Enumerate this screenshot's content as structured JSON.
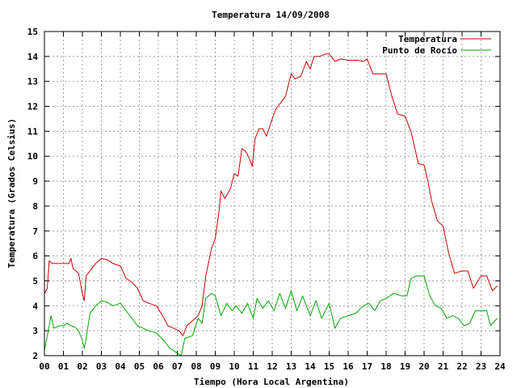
{
  "chart_data": {
    "type": "line",
    "title": "Temperatura 14/09/2008",
    "xlabel": "Tiempo (Hora Local Argentina)",
    "ylabel": "Temperatura (Grados Celsius)",
    "xlim": [
      0,
      24
    ],
    "ylim": [
      2,
      15
    ],
    "x_ticks": [
      "00",
      "01",
      "02",
      "03",
      "04",
      "05",
      "06",
      "07",
      "08",
      "09",
      "10",
      "11",
      "12",
      "13",
      "14",
      "15",
      "16",
      "17",
      "18",
      "19",
      "20",
      "21",
      "22",
      "23",
      "24"
    ],
    "y_ticks": [
      2,
      3,
      4,
      5,
      6,
      7,
      8,
      9,
      10,
      11,
      12,
      13,
      14,
      15
    ],
    "grid": true,
    "legend_position": "top-right",
    "series": [
      {
        "name": "Temperatura",
        "color": "#cc0000",
        "x": [
          0,
          0.15,
          0.25,
          0.4,
          0.6,
          1.0,
          1.3,
          1.4,
          1.5,
          1.8,
          2.0,
          2.1,
          2.2,
          2.4,
          2.7,
          3.0,
          3.3,
          3.6,
          4.0,
          4.3,
          4.6,
          4.9,
          5.2,
          5.5,
          5.9,
          6.3,
          6.5,
          6.8,
          7.1,
          7.3,
          7.5,
          7.8,
          8.1,
          8.3,
          8.5,
          8.8,
          9.0,
          9.2,
          9.3,
          9.5,
          9.8,
          10.0,
          10.2,
          10.4,
          10.6,
          10.8,
          10.95,
          11.1,
          11.3,
          11.5,
          11.7,
          12.0,
          12.2,
          12.4,
          12.7,
          13.0,
          13.2,
          13.5,
          13.8,
          14.0,
          14.2,
          14.5,
          14.8,
          15.0,
          15.3,
          15.6,
          16.0,
          16.5,
          16.8,
          17.0,
          17.1,
          17.3,
          17.5,
          18.0,
          18.3,
          18.6,
          19.0,
          19.3,
          19.7,
          20.0,
          20.2,
          20.4,
          20.7,
          21.0,
          21.3,
          21.6,
          22.0,
          22.3,
          22.6,
          23.0,
          23.3,
          23.6
        ],
        "y": [
          4.5,
          4.7,
          5.8,
          5.7,
          5.7,
          5.7,
          5.7,
          5.9,
          5.5,
          5.3,
          4.5,
          4.2,
          5.2,
          5.4,
          5.7,
          5.9,
          5.85,
          5.7,
          5.6,
          5.1,
          4.95,
          4.7,
          4.2,
          4.1,
          4.0,
          3.5,
          3.2,
          3.1,
          3.0,
          2.8,
          3.2,
          3.4,
          3.6,
          4.0,
          5.2,
          6.3,
          6.7,
          7.8,
          8.6,
          8.3,
          8.7,
          9.3,
          9.2,
          10.3,
          10.2,
          9.9,
          9.6,
          10.7,
          11.1,
          11.1,
          10.8,
          11.5,
          11.9,
          12.1,
          12.4,
          13.3,
          13.1,
          13.2,
          13.8,
          13.5,
          14.0,
          14.0,
          14.1,
          14.1,
          13.8,
          13.9,
          13.85,
          13.85,
          13.8,
          13.9,
          13.7,
          13.3,
          13.3,
          13.3,
          12.4,
          11.7,
          11.6,
          11.0,
          9.7,
          9.65,
          9.0,
          8.2,
          7.4,
          7.2,
          6.1,
          5.3,
          5.4,
          5.4,
          4.7,
          5.2,
          5.2,
          4.6
        ],
        "end_x": 23.85,
        "end_y": 4.8
      },
      {
        "name": "Punto de Rocío",
        "color": "#00aa00",
        "x": [
          0,
          0.2,
          0.35,
          0.5,
          0.8,
          1.0,
          1.2,
          1.4,
          1.6,
          1.8,
          2.0,
          2.1,
          2.2,
          2.4,
          2.7,
          3.0,
          3.3,
          3.6,
          4.0,
          4.3,
          4.6,
          4.9,
          5.2,
          5.5,
          5.9,
          6.3,
          6.6,
          7.0,
          7.2,
          7.4,
          7.8,
          8.1,
          8.3,
          8.5,
          8.8,
          9.0,
          9.3,
          9.6,
          9.9,
          10.1,
          10.4,
          10.7,
          11.0,
          11.2,
          11.5,
          11.8,
          12.1,
          12.4,
          12.7,
          13.0,
          13.3,
          13.6,
          14.0,
          14.3,
          14.6,
          15.0,
          15.3,
          15.6,
          16.0,
          16.4,
          16.8,
          17.1,
          17.4,
          17.7,
          18.0,
          18.4,
          18.8,
          19.1,
          19.3,
          19.6,
          20.0,
          20.3,
          20.6,
          20.9,
          21.2,
          21.5,
          21.8,
          22.1,
          22.4,
          22.7,
          23.0,
          23.3,
          23.5
        ],
        "y": [
          2.2,
          3.0,
          3.6,
          3.1,
          3.2,
          3.2,
          3.3,
          3.2,
          3.15,
          3.0,
          2.6,
          2.3,
          2.7,
          3.7,
          4.0,
          4.2,
          4.15,
          4.0,
          4.1,
          3.8,
          3.5,
          3.2,
          3.1,
          3.0,
          2.9,
          2.6,
          2.3,
          2.1,
          2.0,
          2.7,
          2.8,
          3.5,
          3.3,
          4.3,
          4.5,
          4.4,
          3.6,
          4.1,
          3.8,
          4.0,
          3.7,
          4.1,
          3.5,
          4.3,
          3.9,
          4.2,
          3.8,
          4.5,
          3.9,
          4.6,
          3.8,
          4.4,
          3.6,
          4.2,
          3.5,
          4.1,
          3.1,
          3.5,
          3.6,
          3.7,
          4.0,
          4.1,
          3.8,
          4.2,
          4.3,
          4.5,
          4.4,
          4.4,
          5.1,
          5.2,
          5.2,
          4.4,
          4.0,
          3.9,
          3.5,
          3.6,
          3.5,
          3.2,
          3.3,
          3.8,
          3.8,
          3.8,
          3.2
        ],
        "end_x": 23.85,
        "end_y": 3.5
      }
    ]
  }
}
